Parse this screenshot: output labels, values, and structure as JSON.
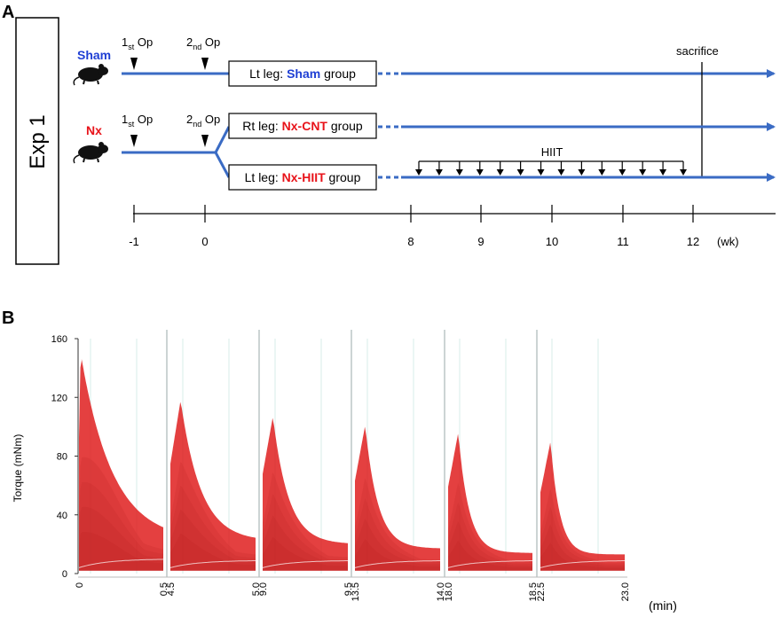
{
  "panel_a": {
    "label": "A",
    "exp_label": "Exp 1",
    "sham": {
      "name": "Sham",
      "op1": {
        "main": "1",
        "sub": "st",
        "rest": " Op"
      },
      "op2": {
        "main": "2",
        "sub": "nd",
        "rest": " Op"
      },
      "box": {
        "prefix": "Lt leg: ",
        "highlight": "Sham",
        "suffix": " group"
      }
    },
    "nx": {
      "name": "Nx",
      "op1": {
        "main": "1",
        "sub": "st",
        "rest": " Op"
      },
      "op2": {
        "main": "2",
        "sub": "nd",
        "rest": " Op"
      },
      "box_cnt": {
        "prefix": "Rt leg: ",
        "highlight": "Nx-CNT",
        "suffix": " group"
      },
      "box_hiit": {
        "prefix": "Lt leg: ",
        "highlight": "Nx-HIIT",
        "suffix": " group"
      }
    },
    "hiit_label": "HIIT",
    "sacrifice_label": "sacrifice",
    "timeline_ticks": [
      "-1",
      "0",
      "8",
      "9",
      "10",
      "11",
      "12"
    ],
    "timeline_unit": "(wk)",
    "colors": {
      "line": "#3a6bc4",
      "sham_text": "#1f3fd4",
      "nx_text": "#e8131a"
    }
  },
  "panel_b": {
    "label": "B",
    "unit_label": "(min)",
    "chart_data": {
      "type": "area",
      "ylabel": "Torque (mNm)",
      "xlabel": "",
      "ylim": [
        0,
        160
      ],
      "y_ticks": [
        "0",
        "40",
        "80",
        "120",
        "160"
      ],
      "x_tick_labels": [
        "0",
        "0.5",
        "4.5",
        "5.0",
        "9.0",
        "9.5",
        "13.5",
        "14.0",
        "18.0",
        "18.5",
        "22.5",
        "23.0"
      ],
      "series": [
        {
          "start": 0,
          "end": 0.5,
          "peak_torque": 150,
          "end_torque": 22
        },
        {
          "start": 4.5,
          "end": 5.0,
          "peak_torque": 118,
          "end_torque": 22
        },
        {
          "start": 9.0,
          "end": 9.5,
          "peak_torque": 107,
          "end_torque": 20
        },
        {
          "start": 13.5,
          "end": 14.0,
          "peak_torque": 101,
          "end_torque": 17
        },
        {
          "start": 18.0,
          "end": 18.5,
          "peak_torque": 96,
          "end_torque": 14
        },
        {
          "start": 22.5,
          "end": 23.0,
          "peak_torque": 90,
          "end_torque": 13
        }
      ],
      "color": "#dd1a1a"
    }
  }
}
